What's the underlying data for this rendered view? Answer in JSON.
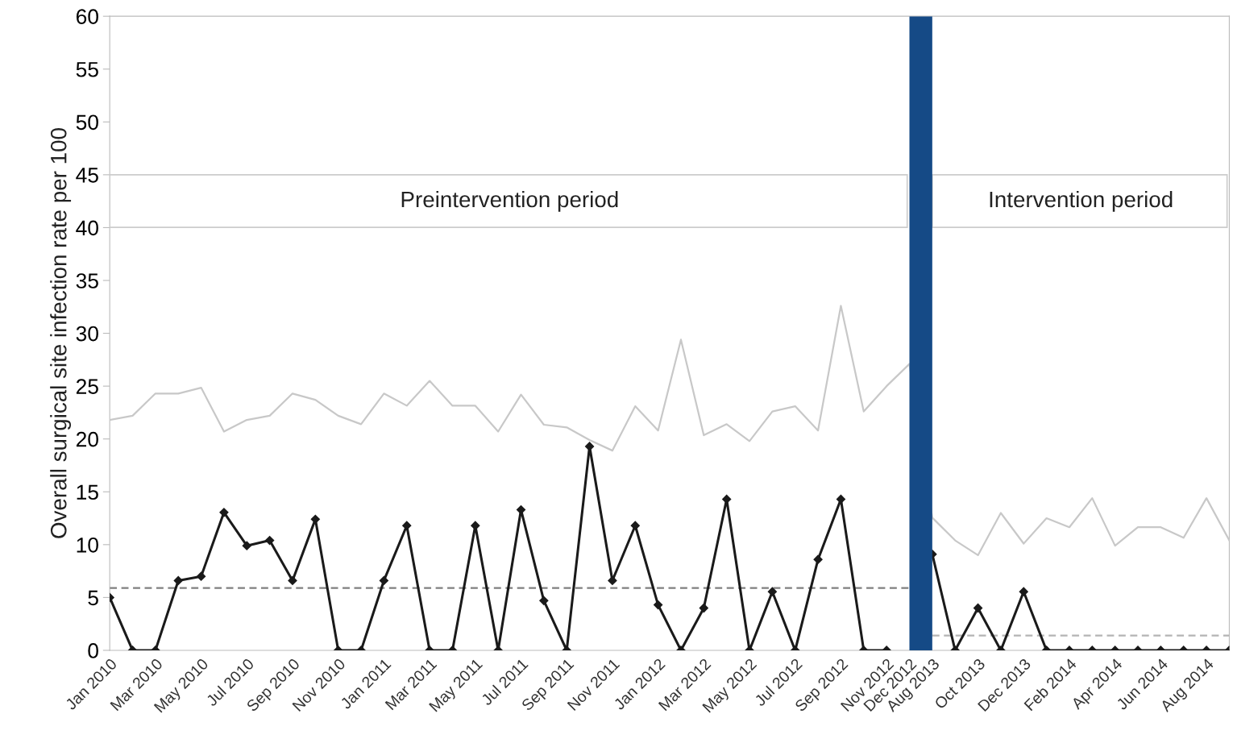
{
  "chart_data": {
    "type": "line",
    "ylabel": "Overall surgical site infection rate per 100",
    "categories": [
      "Jan 2010",
      null,
      "Mar 2010",
      null,
      "May 2010",
      null,
      "Jul 2010",
      null,
      "Sep 2010",
      null,
      "Nov 2010",
      null,
      "Jan 2011",
      null,
      "Mar 2011",
      null,
      "May 2011",
      null,
      "Jul 2011",
      null,
      "Sep 2011",
      null,
      "Nov 2011",
      null,
      "Jan 2012",
      null,
      "Mar 2012",
      null,
      "May 2012",
      null,
      "Jul 2012",
      null,
      "Sep 2012",
      null,
      "Nov 2012",
      "Dec 2012",
      "Aug 2013",
      null,
      "Oct 2013",
      null,
      "Dec 2013",
      null,
      "Feb 2014",
      null,
      "Apr 2014",
      null,
      "Jun 2014",
      null,
      "Aug 2014",
      null
    ],
    "series": [
      {
        "color": "#c8c8c8",
        "marker": "none",
        "line_style": "solid",
        "values": [
          21.8,
          22.2,
          24.3,
          24.3,
          24.85,
          20.7,
          21.8,
          22.2,
          24.3,
          23.7,
          22.2,
          21.4,
          24.3,
          23.15,
          25.5,
          23.15,
          23.15,
          20.7,
          24.2,
          21.35,
          21.1,
          19.9,
          18.9,
          23.1,
          20.8,
          29.4,
          20.35,
          21.4,
          19.8,
          22.6,
          23.1,
          20.8,
          32.6,
          22.6,
          25.0,
          27.1,
          12.55,
          10.4,
          9.0,
          13.0,
          10.1,
          12.5,
          11.65,
          14.4,
          9.9,
          11.65,
          11.65,
          10.65,
          14.4,
          10.4
        ]
      },
      {
        "color": "#808080",
        "marker": "none",
        "line_style": "dashed",
        "values": [
          5.9,
          5.9,
          5.9,
          5.9,
          5.9,
          5.9,
          5.9,
          5.9,
          5.9,
          5.9,
          5.9,
          5.9,
          5.9,
          5.9,
          5.9,
          5.9,
          5.9,
          5.9,
          5.9,
          5.9,
          5.9,
          5.9,
          5.9,
          5.9,
          5.9,
          5.9,
          5.9,
          5.9,
          5.9,
          5.9,
          5.9,
          5.9,
          5.9,
          5.9,
          5.9,
          5.9,
          null,
          null,
          null,
          null,
          null,
          null,
          null,
          null,
          null,
          null,
          null,
          null,
          null,
          null
        ]
      },
      {
        "color": "#b4b4b4",
        "marker": "none",
        "line_style": "dashed",
        "values": [
          null,
          null,
          null,
          null,
          null,
          null,
          null,
          null,
          null,
          null,
          null,
          null,
          null,
          null,
          null,
          null,
          null,
          null,
          null,
          null,
          null,
          null,
          null,
          null,
          null,
          null,
          null,
          null,
          null,
          null,
          null,
          null,
          null,
          null,
          null,
          null,
          1.4,
          1.4,
          1.4,
          1.4,
          1.4,
          1.4,
          1.4,
          1.4,
          1.4,
          1.4,
          1.4,
          1.4,
          1.4,
          1.4
        ]
      },
      {
        "color": "#1a1a1a",
        "marker": "diamond",
        "line_style": "solid",
        "values": [
          5.0,
          0,
          0,
          6.6,
          7.0,
          13.05,
          9.9,
          10.4,
          6.6,
          12.4,
          0,
          0,
          6.6,
          11.8,
          0,
          0,
          11.8,
          0,
          13.3,
          4.7,
          0,
          19.3,
          6.6,
          11.8,
          4.3,
          0,
          4.0,
          14.3,
          0,
          5.55,
          0,
          8.6,
          14.3,
          0,
          0,
          null,
          9.1,
          0,
          4.0,
          0,
          5.55,
          0,
          0,
          0,
          0,
          0,
          0,
          0,
          0,
          0
        ]
      }
    ],
    "bands": [
      {
        "axis": "x",
        "from": "Dec 2012",
        "to": "Aug 2013",
        "color": "#154a86"
      }
    ],
    "annotations": [
      "Preintervention period",
      "Intervention period"
    ],
    "ylim": [
      0,
      60
    ],
    "yticks": [
      0,
      5,
      10,
      15,
      20,
      25,
      30,
      35,
      40,
      45,
      50,
      55,
      60
    ],
    "grid": false,
    "legend": false
  }
}
